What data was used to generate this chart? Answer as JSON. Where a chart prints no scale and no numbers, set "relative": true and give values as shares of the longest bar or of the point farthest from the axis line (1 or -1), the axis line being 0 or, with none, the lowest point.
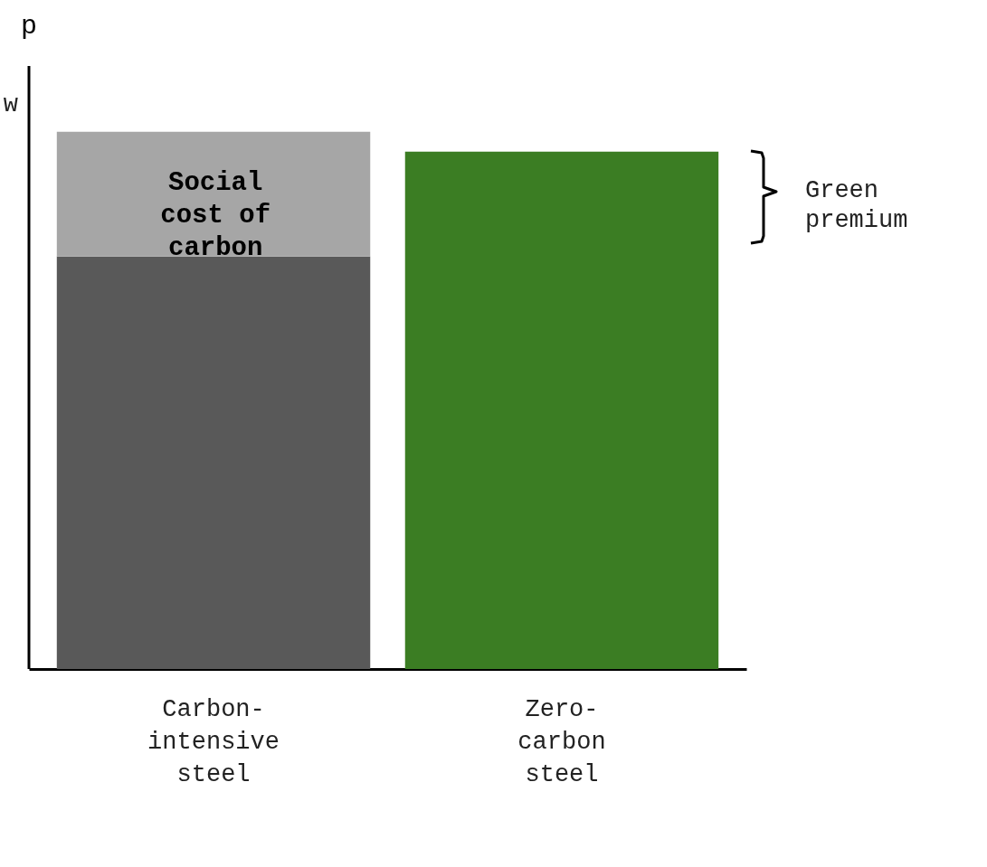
{
  "chart_data": {
    "type": "bar",
    "relative": true,
    "stacked": true,
    "ylabel": "p",
    "categories": [
      "Carbon-intensive steel",
      "Zero-carbon steel"
    ],
    "series": [
      {
        "color": "#595959",
        "values": [
          0.768,
          null
        ]
      },
      {
        "color": "#a6a6a6",
        "values": [
          0.232,
          null
        ]
      },
      {
        "color": "#3b7d23",
        "values": [
          null,
          0.963
        ]
      }
    ],
    "annotations": [
      "w",
      "Green premium",
      "Social cost of carbon"
    ],
    "grid": false
  }
}
